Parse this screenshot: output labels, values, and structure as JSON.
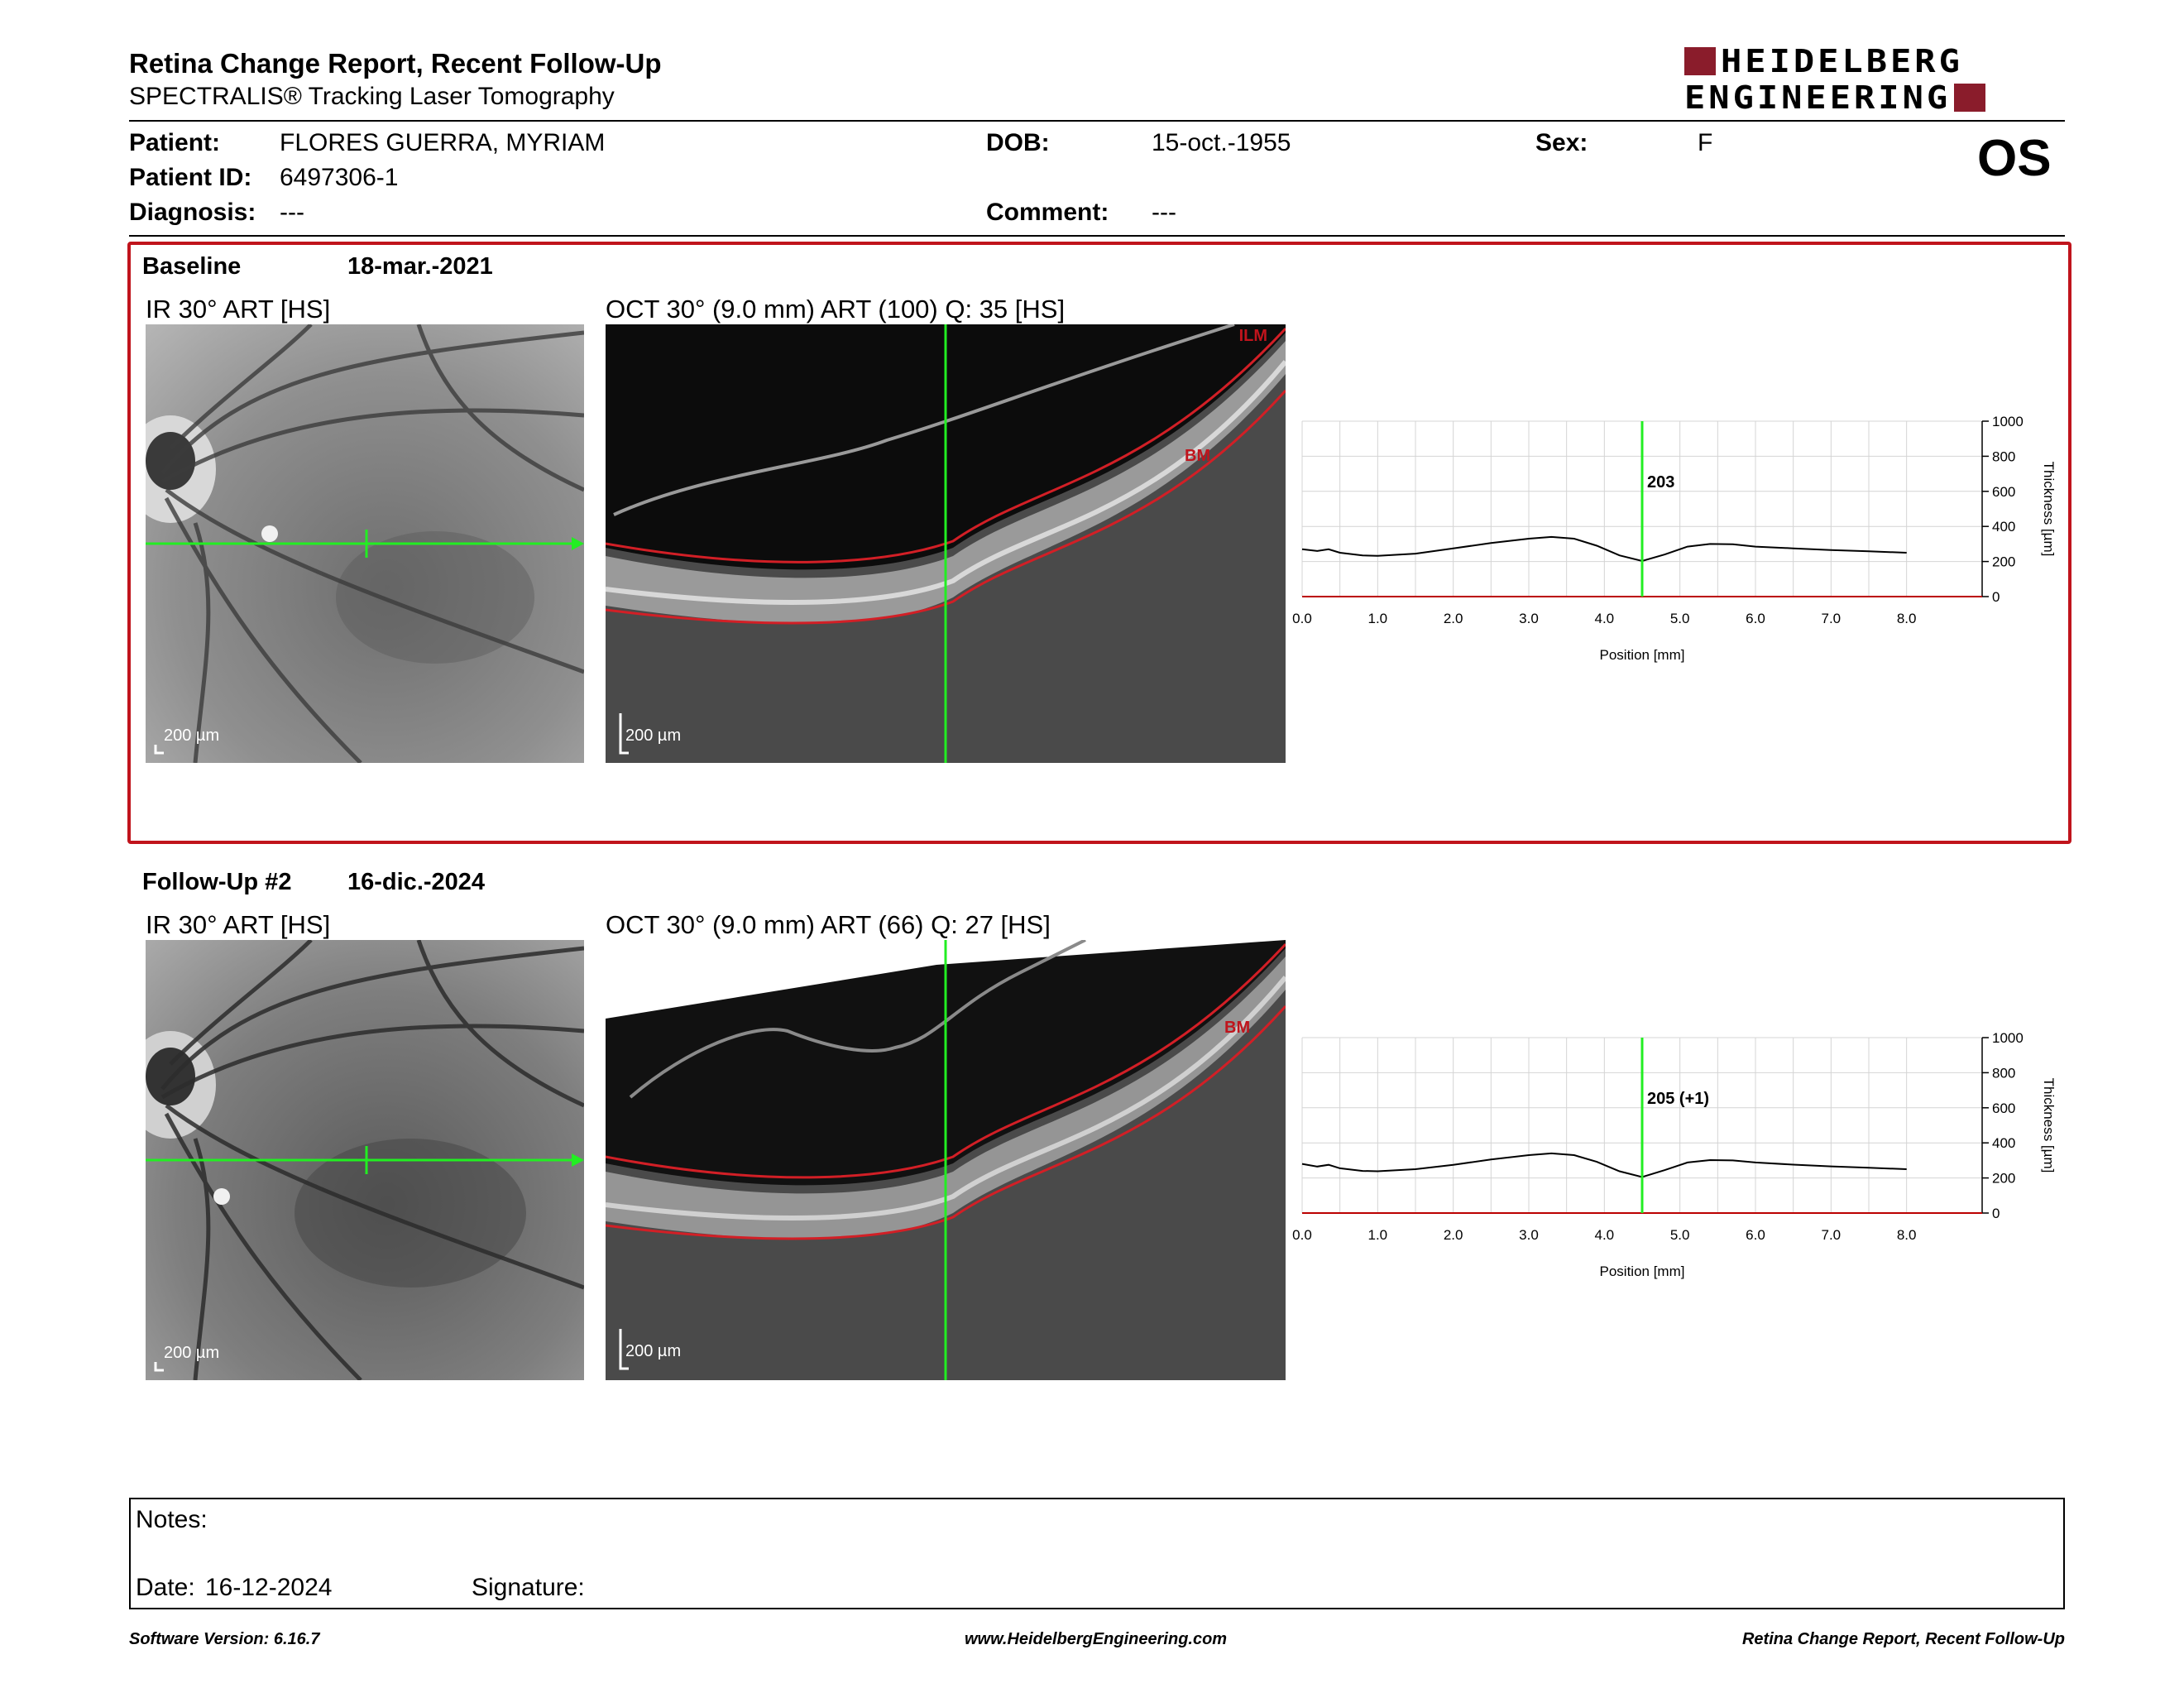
{
  "header": {
    "title": "Retina Change Report, Recent Follow-Up",
    "subtitle": "SPECTRALIS® Tracking Laser Tomography",
    "logo_line1": "HEIDELBERG",
    "logo_line2": "ENGINEERING",
    "brand_color": "#8a1c2b",
    "eye": "OS"
  },
  "patient": {
    "name_label": "Patient:",
    "name": "FLORES GUERRA, MYRIAM",
    "id_label": "Patient ID:",
    "id": "6497306-1",
    "diagnosis_label": "Diagnosis:",
    "diagnosis": "---",
    "dob_label": "DOB:",
    "dob": "15-oct.-1955",
    "comment_label": "Comment:",
    "comment": "---",
    "sex_label": "Sex:",
    "sex": "F"
  },
  "baseline": {
    "label": "Baseline",
    "date": "18-mar.-2021",
    "ir_title": "IR 30° ART [HS]",
    "oct_title": "OCT 30° (9.0 mm) ART (100) Q: 35 [HS]",
    "scale": "200 µm",
    "ilm_tag": "ILM",
    "bm_tag": "BM"
  },
  "followup": {
    "label": "Follow-Up #2",
    "date": "16-dic.-2024",
    "ir_title": "IR 30° ART [HS]",
    "oct_title": "OCT 30° (9.0 mm) ART (66) Q: 27 [HS]",
    "scale": "200 µm",
    "bm_tag": "BM"
  },
  "chart_data": [
    {
      "type": "line",
      "title": "",
      "xlabel": "Position [mm]",
      "ylabel": "Thickness [µm]",
      "xlim": [
        0,
        9.0
      ],
      "ylim": [
        0,
        1000
      ],
      "x_ticks": [
        "0.0",
        "1.0",
        "2.0",
        "3.0",
        "4.0",
        "5.0",
        "6.0",
        "7.0",
        "8.0"
      ],
      "y_ticks": [
        "0",
        "200",
        "400",
        "600",
        "800",
        "1000"
      ],
      "marker_x": 4.5,
      "marker_label": "203",
      "grid": true,
      "series": [
        {
          "x": [
            0.0,
            0.2,
            0.35,
            0.5,
            0.8,
            1.0,
            1.5,
            2.0,
            2.5,
            3.0,
            3.3,
            3.6,
            3.9,
            4.2,
            4.5,
            4.8,
            5.1,
            5.4,
            5.7,
            6.0,
            6.5,
            7.0,
            7.5,
            8.0
          ],
          "values": [
            270,
            260,
            270,
            250,
            235,
            232,
            245,
            275,
            305,
            330,
            340,
            330,
            290,
            235,
            203,
            240,
            285,
            300,
            298,
            285,
            275,
            265,
            258,
            250
          ]
        }
      ]
    },
    {
      "type": "line",
      "title": "",
      "xlabel": "Position [mm]",
      "ylabel": "Thickness [µm]",
      "xlim": [
        0,
        9.0
      ],
      "ylim": [
        0,
        1000
      ],
      "x_ticks": [
        "0.0",
        "1.0",
        "2.0",
        "3.0",
        "4.0",
        "5.0",
        "6.0",
        "7.0",
        "8.0"
      ],
      "y_ticks": [
        "0",
        "200",
        "400",
        "600",
        "800",
        "1000"
      ],
      "marker_x": 4.5,
      "marker_label": "205 (+1)",
      "grid": true,
      "series": [
        {
          "x": [
            0.0,
            0.2,
            0.35,
            0.5,
            0.8,
            1.0,
            1.5,
            2.0,
            2.5,
            3.0,
            3.3,
            3.6,
            3.9,
            4.2,
            4.5,
            4.8,
            5.1,
            5.4,
            5.7,
            6.0,
            6.5,
            7.0,
            7.5,
            8.0
          ],
          "values": [
            280,
            265,
            275,
            255,
            240,
            238,
            250,
            275,
            305,
            330,
            340,
            330,
            292,
            238,
            205,
            245,
            288,
            302,
            300,
            288,
            276,
            266,
            258,
            250
          ]
        }
      ]
    }
  ],
  "notes": {
    "notes_label": "Notes:",
    "date_label": "Date:",
    "date": "16-12-2024",
    "signature_label": "Signature:"
  },
  "footer": {
    "version": "Software Version: 6.16.7",
    "website": "www.HeidelbergEngineering.com",
    "report": "Retina Change Report, Recent Follow-Up"
  }
}
